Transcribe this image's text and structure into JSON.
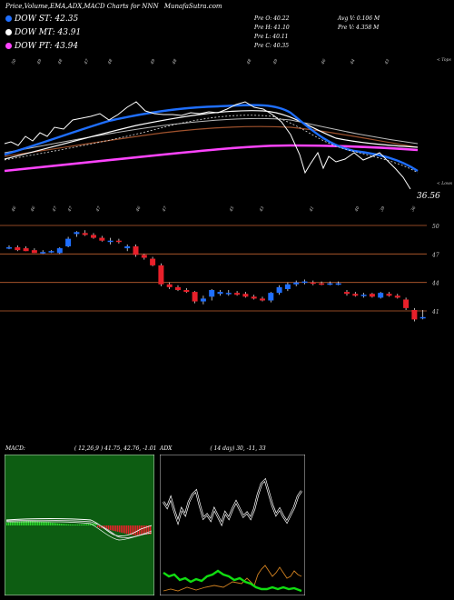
{
  "header": {
    "title": "Price,Volume,EMA,ADX,MACD Charts for NNN",
    "site": "MunafaSutra.com"
  },
  "legend": [
    {
      "label": "DOW ST: 42.35",
      "color": "#1f6fff"
    },
    {
      "label": "DOW MT: 43.91",
      "color": "#ffffff"
    },
    {
      "label": "DOW PT: 43.94",
      "color": "#ff44ff"
    }
  ],
  "info": {
    "open": "Pre  O: 40.22",
    "high": "Pre  H: 41.10",
    "low": "Pre  L: 40.11",
    "close": "Pre  C: 40.35",
    "avg_vol": "Avg V: 0.106  M",
    "vol": "Pre  V: 4.358  M"
  },
  "labels": {
    "tops": "< Tops",
    "lows": "< Lows",
    "last_low": "36.56"
  },
  "indicators": {
    "macd_label": "MACD:",
    "macd_values": "( 12,26,9 ) 41.75,  42.76,  -1.01",
    "adx_label": "ADX",
    "adx_values": "( 14  day) 30,  -11,  33"
  },
  "colors": {
    "up": "#1f6fff",
    "down": "#e8202a",
    "ema_short": "#1f6fff",
    "ema_mid": "#ffffff",
    "ema_long": "#ff44ff",
    "ema_brown": "#a0522d",
    "grid_line": "#c06030",
    "macd_bg": "#0d5d12",
    "adx_green": "#11dd11",
    "adx_orange": "#d08020"
  },
  "chart_data": {
    "type": "candlestick",
    "ticker": "NNN",
    "price_levels": [
      50,
      47,
      44,
      41
    ],
    "candles": [
      {
        "o": 47.7,
        "h": 47.9,
        "l": 47.5,
        "c": 47.7
      },
      {
        "o": 47.7,
        "h": 47.9,
        "l": 47.3,
        "c": 47.4
      },
      {
        "o": 47.6,
        "h": 47.8,
        "l": 47.3,
        "c": 47.3
      },
      {
        "o": 47.4,
        "h": 47.6,
        "l": 47.1,
        "c": 47.1
      },
      {
        "o": 47.2,
        "h": 47.4,
        "l": 47.0,
        "c": 47.2
      },
      {
        "o": 47.2,
        "h": 47.4,
        "l": 47.1,
        "c": 47.3
      },
      {
        "o": 47.1,
        "h": 47.7,
        "l": 47.0,
        "c": 47.6
      },
      {
        "o": 47.8,
        "h": 48.8,
        "l": 47.7,
        "c": 48.6
      },
      {
        "o": 49.1,
        "h": 49.4,
        "l": 48.8,
        "c": 49.3
      },
      {
        "o": 49.2,
        "h": 49.5,
        "l": 48.9,
        "c": 49.0
      },
      {
        "o": 49.0,
        "h": 49.2,
        "l": 48.6,
        "c": 48.7
      },
      {
        "o": 48.7,
        "h": 48.9,
        "l": 48.3,
        "c": 48.4
      },
      {
        "o": 48.3,
        "h": 48.7,
        "l": 48.0,
        "c": 48.4
      },
      {
        "o": 48.4,
        "h": 48.6,
        "l": 48.1,
        "c": 48.3
      },
      {
        "o": 47.6,
        "h": 48.0,
        "l": 47.3,
        "c": 47.8
      },
      {
        "o": 47.8,
        "h": 48.0,
        "l": 46.7,
        "c": 46.9
      },
      {
        "o": 46.9,
        "h": 47.0,
        "l": 46.4,
        "c": 46.6
      },
      {
        "o": 46.5,
        "h": 46.7,
        "l": 45.7,
        "c": 45.8
      },
      {
        "o": 45.8,
        "h": 46.0,
        "l": 43.6,
        "c": 43.8
      },
      {
        "o": 43.8,
        "h": 44.0,
        "l": 43.3,
        "c": 43.5
      },
      {
        "o": 43.5,
        "h": 43.7,
        "l": 43.1,
        "c": 43.2
      },
      {
        "o": 43.2,
        "h": 43.4,
        "l": 42.9,
        "c": 43.0
      },
      {
        "o": 43.0,
        "h": 43.1,
        "l": 41.8,
        "c": 42.0
      },
      {
        "o": 42.0,
        "h": 42.6,
        "l": 41.7,
        "c": 42.3
      },
      {
        "o": 42.5,
        "h": 43.3,
        "l": 42.1,
        "c": 43.2
      },
      {
        "o": 42.8,
        "h": 43.2,
        "l": 42.6,
        "c": 43.0
      },
      {
        "o": 42.9,
        "h": 43.2,
        "l": 42.6,
        "c": 42.9
      },
      {
        "o": 42.9,
        "h": 43.1,
        "l": 42.6,
        "c": 42.7
      },
      {
        "o": 42.8,
        "h": 43.0,
        "l": 42.4,
        "c": 42.5
      },
      {
        "o": 42.5,
        "h": 42.7,
        "l": 42.2,
        "c": 42.3
      },
      {
        "o": 42.3,
        "h": 42.5,
        "l": 42.0,
        "c": 42.1
      },
      {
        "o": 42.1,
        "h": 43.0,
        "l": 41.9,
        "c": 42.9
      },
      {
        "o": 42.9,
        "h": 43.7,
        "l": 42.7,
        "c": 43.5
      },
      {
        "o": 43.3,
        "h": 44.0,
        "l": 43.1,
        "c": 43.8
      },
      {
        "o": 43.8,
        "h": 44.2,
        "l": 43.6,
        "c": 44.0
      },
      {
        "o": 44.0,
        "h": 44.3,
        "l": 43.8,
        "c": 44.1
      },
      {
        "o": 44.0,
        "h": 44.2,
        "l": 43.7,
        "c": 43.9
      },
      {
        "o": 43.9,
        "h": 44.1,
        "l": 43.7,
        "c": 43.8
      },
      {
        "o": 43.8,
        "h": 44.1,
        "l": 43.7,
        "c": 43.9
      },
      {
        "o": 43.9,
        "h": 44.1,
        "l": 43.7,
        "c": 43.9
      },
      {
        "o": 43.0,
        "h": 43.2,
        "l": 42.6,
        "c": 42.8
      },
      {
        "o": 42.8,
        "h": 43.0,
        "l": 42.5,
        "c": 42.6
      },
      {
        "o": 42.6,
        "h": 42.9,
        "l": 42.4,
        "c": 42.7
      },
      {
        "o": 42.8,
        "h": 42.9,
        "l": 42.4,
        "c": 42.5
      },
      {
        "o": 42.4,
        "h": 43.0,
        "l": 42.3,
        "c": 42.9
      },
      {
        "o": 42.8,
        "h": 43.0,
        "l": 42.5,
        "c": 42.6
      },
      {
        "o": 42.6,
        "h": 42.8,
        "l": 42.3,
        "c": 42.4
      },
      {
        "o": 42.2,
        "h": 42.4,
        "l": 41.1,
        "c": 41.3
      },
      {
        "o": 41.1,
        "h": 41.3,
        "l": 39.9,
        "c": 40.1
      },
      {
        "o": 40.22,
        "h": 41.1,
        "l": 40.11,
        "c": 40.35
      }
    ]
  }
}
